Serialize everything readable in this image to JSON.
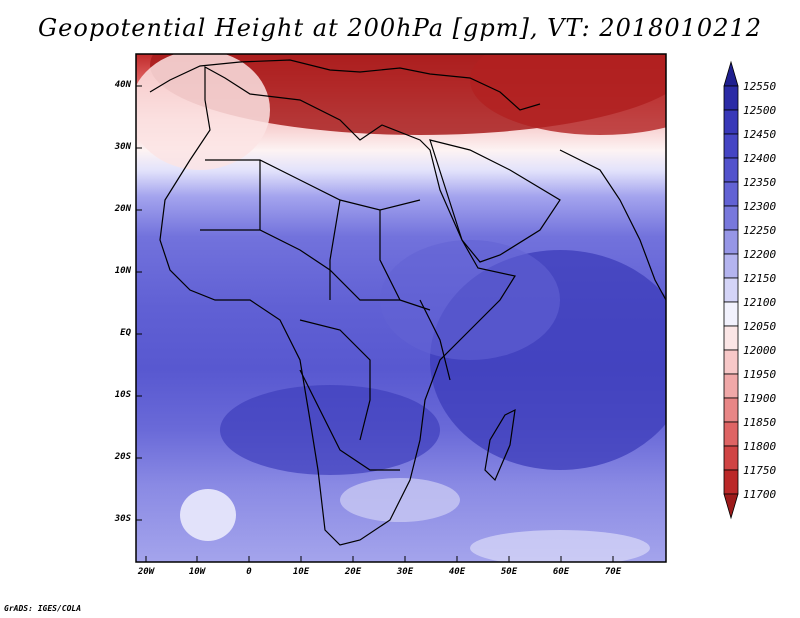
{
  "title": "Geopotential Height at 200hPa [gpm], VT: 2018010212",
  "footer": "GrADS: IGES/COLA",
  "lat_labels": [
    "40N",
    "30N",
    "20N",
    "10N",
    "EQ",
    "10S",
    "20S",
    "30S"
  ],
  "lon_labels": [
    "20W",
    "10W",
    "0",
    "10E",
    "20E",
    "30E",
    "40E",
    "50E",
    "60E",
    "70E"
  ],
  "colorbar": {
    "levels": [
      "12550",
      "12500",
      "12450",
      "12400",
      "12350",
      "12300",
      "12250",
      "12200",
      "12150",
      "12100",
      "12050",
      "12000",
      "11950",
      "11900",
      "11850",
      "11800",
      "11750",
      "11700"
    ],
    "colors": [
      "#1f1f8f",
      "#2b2ba6",
      "#3838b8",
      "#4545c4",
      "#5252cc",
      "#6262d4",
      "#7878dc",
      "#9696e6",
      "#b4b4ef",
      "#d4d4f7",
      "#f2f2fd",
      "#fbe6e6",
      "#f7c8c8",
      "#f0a8a8",
      "#e88686",
      "#de6464",
      "#d04444",
      "#bb2828",
      "#9c1a1a"
    ]
  },
  "map": {
    "region": "Africa and the Middle East",
    "domain": {
      "lon": [
        -22,
        80
      ],
      "lat": [
        -37,
        45
      ]
    },
    "contour_fields": [
      {
        "level_gpm": 11700,
        "location": "Eastern Mediterranean / Turkey / Caspian"
      },
      {
        "level_gpm": 12150,
        "location": "Sahara near 25N"
      },
      {
        "level_gpm": 12450,
        "location": "Western Indian Ocean, Southern Africa near 15S"
      }
    ]
  }
}
